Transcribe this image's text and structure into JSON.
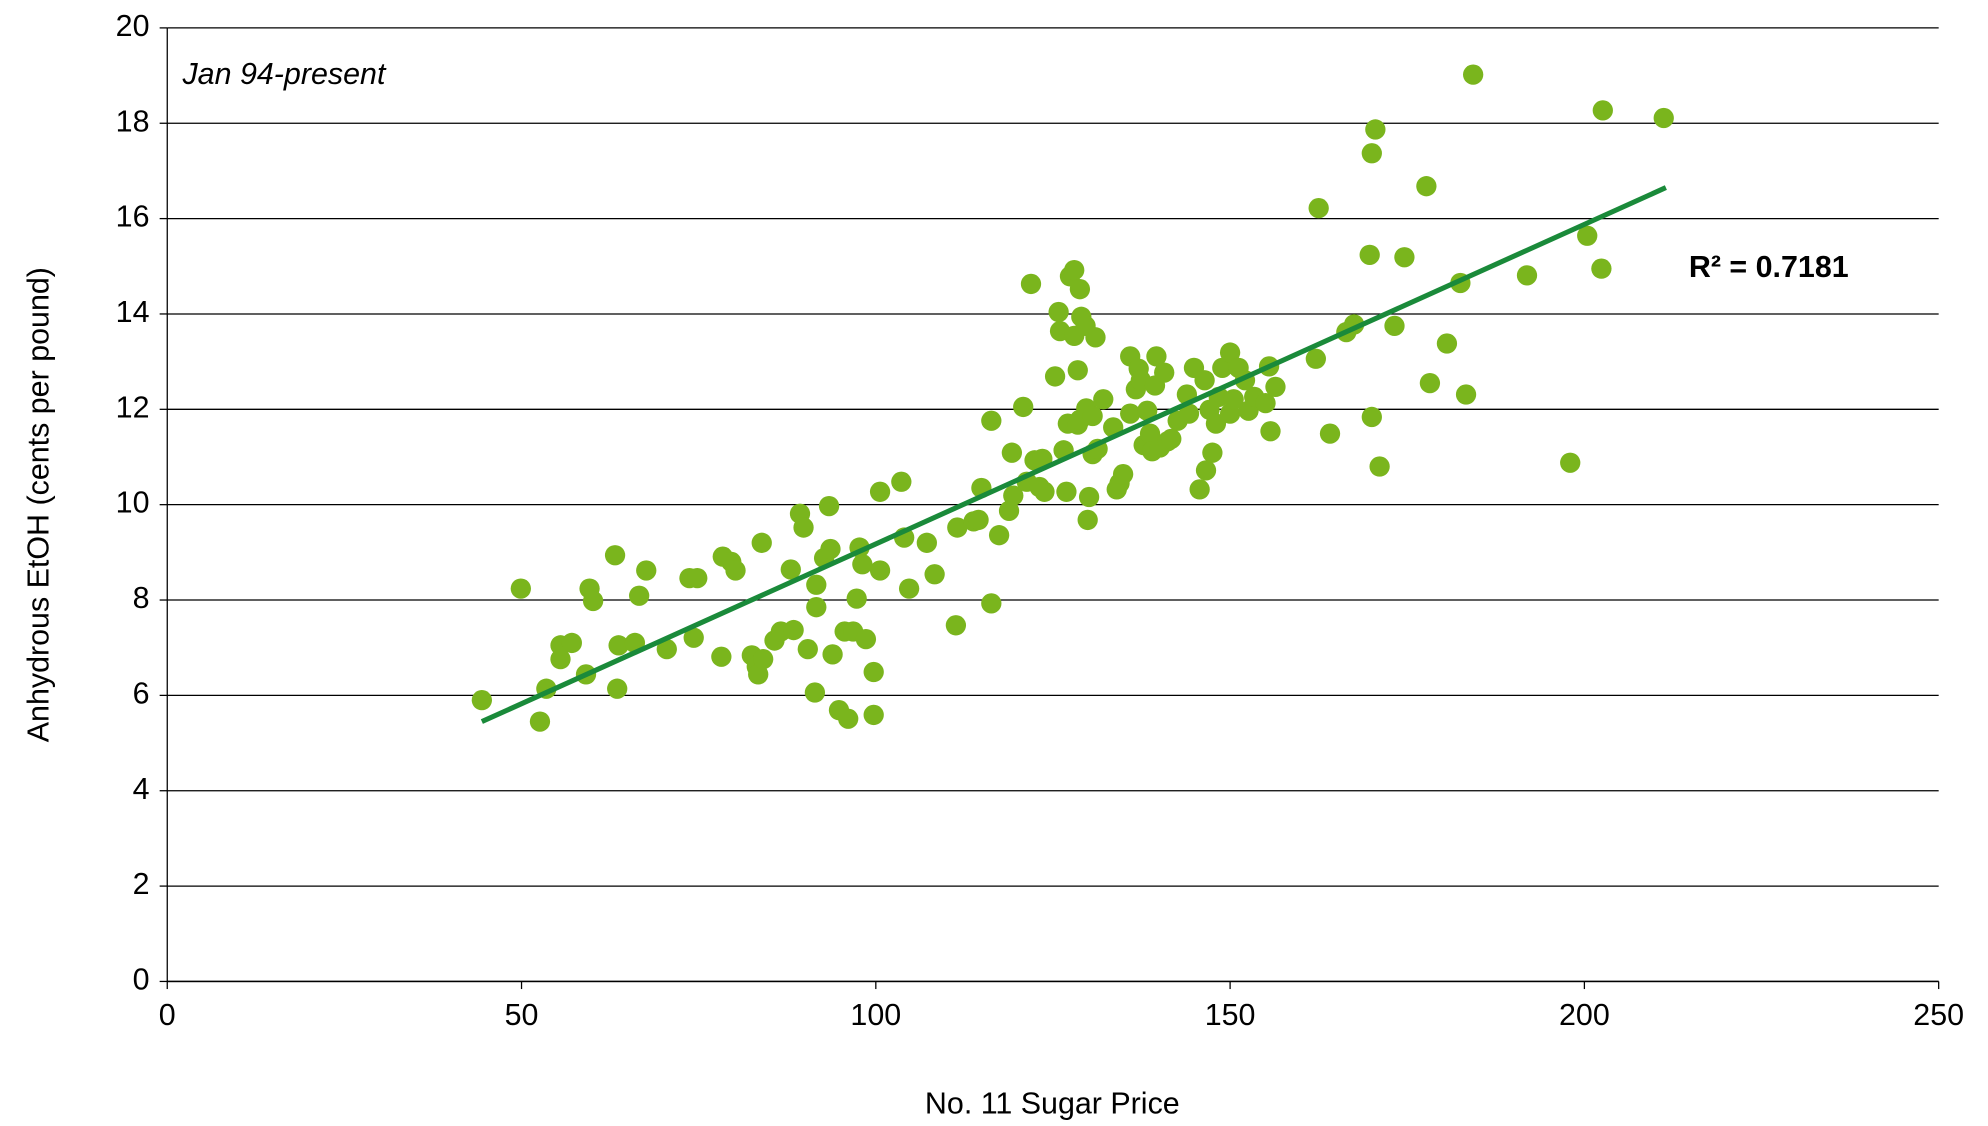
{
  "chart_data": {
    "type": "scatter",
    "xlabel": "No. 11 Sugar Price",
    "ylabel": "Anhydrous EtOH (cents per pound)",
    "annotation": "Jan 94-present",
    "r_squared_label": "R² = 0.7181",
    "xlim": [
      0,
      250
    ],
    "xticks": [
      0,
      50,
      100,
      150,
      200,
      250
    ],
    "ylim": [
      0,
      20
    ],
    "yticks": [
      0,
      2,
      4,
      6,
      8,
      10,
      12,
      14,
      16,
      18,
      20
    ],
    "grid": true,
    "series": [
      {
        "name": "data",
        "color": "#7ab51d",
        "x": [
          44.4,
          49.9,
          52.6,
          53.5,
          55.5,
          55.5,
          57.1,
          59.1,
          59.6,
          60.1,
          63.2,
          63.5,
          63.7,
          66.0,
          66.6,
          67.6,
          70.5,
          73.7,
          74.3,
          74.8,
          78.2,
          78.4,
          79.6,
          80.2,
          82.5,
          83.2,
          83.4,
          84.1,
          83.9,
          85.7,
          86.6,
          88.0,
          88.4,
          89.3,
          89.8,
          90.4,
          91.6,
          91.6,
          91.4,
          92.7,
          93.4,
          93.6,
          93.9,
          94.8,
          95.6,
          96.1,
          96.8,
          97.3,
          97.7,
          98.1,
          98.6,
          99.7,
          99.7,
          100.6,
          100.6,
          103.6,
          104.0,
          104.7,
          107.2,
          108.3,
          111.3,
          111.5,
          113.8,
          114.5,
          114.9,
          116.3,
          116.3,
          117.4,
          118.8,
          119.2,
          119.4,
          120.8,
          121.3,
          121.9,
          122.4,
          123.1,
          123.5,
          123.8,
          125.3,
          125.8,
          126.0,
          126.5,
          126.9,
          127.1,
          127.4,
          128.0,
          128.0,
          128.5,
          128.5,
          128.8,
          128.8,
          129.0,
          129.6,
          129.7,
          129.9,
          130.1,
          130.6,
          130.6,
          131.0,
          131.3,
          132.1,
          133.5,
          134.0,
          134.4,
          134.9,
          135.9,
          135.9,
          136.7,
          137.1,
          137.4,
          137.8,
          138.3,
          138.7,
          139.0,
          139.4,
          139.6,
          140.1,
          140.7,
          141.2,
          141.7,
          142.6,
          143.9,
          144.2,
          144.9,
          145.7,
          146.6,
          146.4,
          147.1,
          147.5,
          148.0,
          148.4,
          148.9,
          150.0,
          150.0,
          150.5,
          151.2,
          152.1,
          152.6,
          153.4,
          155.0,
          155.5,
          155.7,
          156.4,
          162.1,
          162.5,
          164.1,
          166.4,
          167.5,
          169.7,
          170.0,
          170.0,
          170.5,
          171.1,
          173.2,
          174.6,
          177.7,
          178.2,
          180.6,
          182.5,
          183.3,
          184.3,
          191.9,
          198.0,
          200.4,
          202.4,
          202.6,
          211.2
        ],
        "values": [
          5.9,
          8.24,
          5.45,
          6.14,
          6.76,
          7.05,
          7.1,
          6.44,
          8.24,
          7.98,
          8.94,
          6.14,
          7.05,
          7.1,
          8.09,
          8.62,
          6.97,
          8.46,
          7.21,
          8.46,
          6.81,
          8.91,
          8.8,
          8.62,
          6.84,
          6.6,
          6.44,
          6.76,
          9.2,
          7.15,
          7.34,
          8.64,
          7.37,
          9.81,
          9.52,
          6.97,
          8.32,
          7.85,
          6.06,
          8.88,
          9.97,
          9.07,
          6.86,
          5.69,
          7.34,
          5.51,
          7.34,
          8.03,
          9.1,
          8.75,
          7.18,
          6.49,
          5.59,
          8.62,
          10.27,
          10.48,
          9.31,
          8.24,
          9.2,
          8.54,
          7.47,
          9.52,
          9.65,
          9.68,
          10.35,
          11.76,
          7.93,
          9.36,
          9.87,
          11.09,
          10.19,
          12.05,
          10.48,
          14.63,
          10.93,
          10.37,
          10.96,
          10.27,
          12.69,
          14.04,
          13.64,
          11.14,
          10.27,
          11.7,
          14.79,
          14.92,
          13.54,
          12.82,
          11.68,
          11.78,
          14.52,
          13.94,
          13.75,
          12.02,
          9.68,
          10.16,
          11.06,
          11.86,
          13.51,
          11.17,
          12.21,
          11.62,
          10.32,
          10.45,
          10.64,
          13.11,
          11.91,
          12.42,
          12.85,
          12.61,
          11.25,
          11.97,
          11.49,
          11.12,
          12.5,
          13.11,
          11.2,
          12.77,
          11.33,
          11.38,
          11.76,
          12.31,
          11.91,
          12.87,
          10.32,
          10.72,
          12.61,
          11.99,
          11.09,
          11.7,
          12.26,
          12.87,
          13.19,
          11.91,
          12.21,
          12.87,
          12.61,
          11.97,
          12.26,
          12.13,
          12.9,
          11.54,
          12.47,
          13.06,
          16.22,
          11.49,
          13.62,
          13.78,
          15.24,
          11.84,
          17.37,
          17.87,
          10.8,
          13.75,
          15.19,
          16.68,
          12.55,
          13.38,
          14.65,
          12.31,
          19.02,
          14.81,
          10.88,
          15.64,
          14.95,
          18.27,
          18.11
        ]
      }
    ],
    "trendline": {
      "color": "#1a8a3a",
      "x": [
        44.4,
        211.5
      ],
      "values": [
        5.45,
        16.65
      ]
    }
  }
}
